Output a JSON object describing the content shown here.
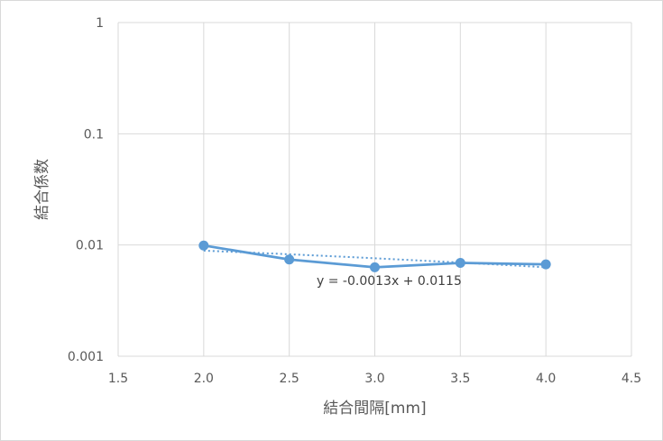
{
  "chart_data": {
    "type": "line",
    "title": "",
    "xlabel": "結合間隔[mm]",
    "ylabel": "結合係数",
    "xlim": [
      1.5,
      4.5
    ],
    "ylim": [
      0.001,
      1
    ],
    "y_scale": "log",
    "x_ticks": [
      "1.5",
      "2.0",
      "2.5",
      "3.0",
      "3.5",
      "4.0",
      "4.5"
    ],
    "y_ticks": [
      "0.001",
      "0.01",
      "0.1",
      "1"
    ],
    "grid": true,
    "series": [
      {
        "x": [
          2.0,
          2.5,
          3.0,
          3.5,
          4.0
        ],
        "y": [
          0.0099,
          0.0074,
          0.0063,
          0.0069,
          0.0067
        ],
        "color": "#5b9bd5",
        "marker": "circle"
      }
    ],
    "trendline": {
      "type": "linear",
      "slope": -0.0013,
      "intercept": 0.0115,
      "x_range": [
        2.0,
        4.0
      ],
      "style": "dotted",
      "color": "#5b9bd5",
      "label": "y = -0.0013x + 0.0115"
    }
  }
}
